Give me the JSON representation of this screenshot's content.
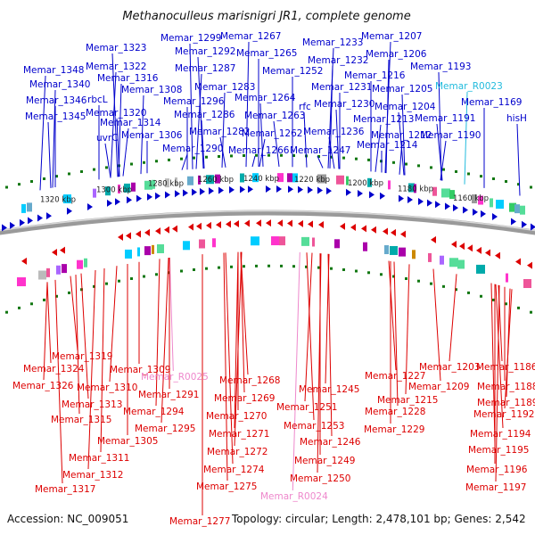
{
  "title": "Methanoculleus marisnigri JR1, complete genome",
  "footer": {
    "accession": "Accession: NC_009051",
    "summary": "Topology: circular; Length: 2,478,101 bp; Genes: 2,542"
  },
  "colors": {
    "forward": "#0000cc",
    "reverse": "#dd0000",
    "rna_forward": "#22bbdd",
    "rna_reverse": "#ee88cc",
    "backbone": "#888888",
    "tick": "#117711"
  },
  "scale_labels": [
    "1320 kbp",
    "1300 kbp",
    "1280 kbp",
    "1260 kbp",
    "1240 kbp",
    "1220 kbp",
    "1200 kbp",
    "1180 kbp",
    "1160 kbp"
  ],
  "top_labels": [
    "Memar_1348",
    "Memar_1340",
    "Memar_1346",
    "Memar_1345",
    "Memar_1323",
    "Memar_1322",
    "Memar_1316",
    "rbcL",
    "Memar_1320",
    "uvrC",
    "Memar_1314",
    "Memar_1308",
    "Memar_1306",
    "Memar_1299",
    "Memar_1292",
    "Memar_1287",
    "Memar_1283",
    "Memar_1296",
    "Memar_1286",
    "Memar_1282",
    "Memar_1290",
    "Memar_1267",
    "Memar_1265",
    "Memar_1264",
    "Memar_1263",
    "Memar_1262",
    "Memar_1266",
    "Memar_1252",
    "rfc",
    "Memar_1247",
    "Memar_1233",
    "Memar_1232",
    "Memar_1231",
    "Memar_1230",
    "Memar_1236",
    "Memar_1207",
    "Memar_1206",
    "Memar_1216",
    "Memar_1205",
    "Memar_1204",
    "Memar_1213",
    "Memar_1212",
    "Memar_1214",
    "Memar_1193",
    "Memar_1191",
    "Memar_1190",
    "Memar_R0023",
    "Memar_1169",
    "hisH"
  ],
  "bottom_labels": [
    "Memar_1319",
    "Memar_1324",
    "Memar_1309",
    "Memar_1326",
    "Memar_1310",
    "Memar_1313",
    "Memar_1315",
    "Memar_1305",
    "Memar_1311",
    "Memar_1312",
    "Memar_1317",
    "Memar_R0025",
    "Memar_1291",
    "Memar_1294",
    "Memar_1295",
    "Memar_1268",
    "Memar_1269",
    "Memar_1270",
    "Memar_1271",
    "Memar_1272",
    "Memar_1274",
    "Memar_1275",
    "Memar_1277",
    "Memar_1245",
    "Memar_1251",
    "Memar_1253",
    "Memar_1246",
    "Memar_1249",
    "Memar_1250",
    "Memar_R0024",
    "Memar_1227",
    "Memar_1228",
    "Memar_1229",
    "Memar_1215",
    "Memar_1203",
    "Memar_1209",
    "Memar_1186",
    "Memar_1188",
    "Memar_1189",
    "Memar_1192",
    "Memar_1194",
    "Memar_1195",
    "Memar_1196",
    "Memar_1197"
  ]
}
